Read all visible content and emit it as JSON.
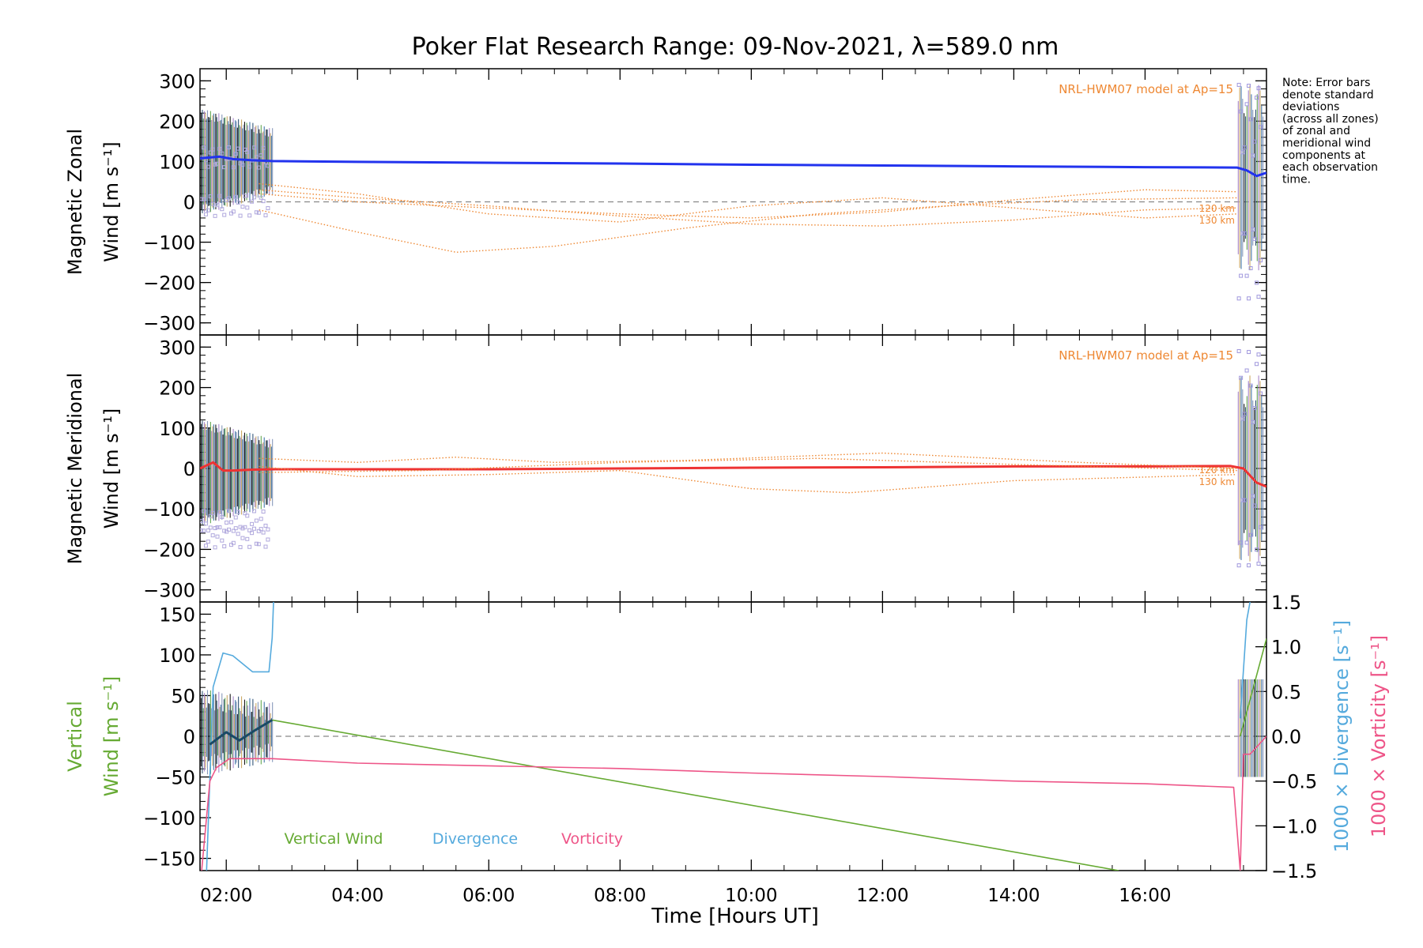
{
  "figure": {
    "title": "Poker Flat Research Range: 09-Nov-2021, λ=589.0 nm",
    "xlabel": "Time [Hours UT]",
    "xticks": [
      "02:00",
      "04:00",
      "06:00",
      "08:00",
      "10:00",
      "12:00",
      "14:00",
      "16:00"
    ],
    "note_lines": [
      "Note: Error bars",
      "denote standard",
      "deviations",
      "(across all zones)",
      "of zonal and",
      "meridional wind",
      "components at",
      "each observation",
      "time."
    ]
  },
  "chart_data": [
    {
      "type": "line",
      "panel": "zonal",
      "ylabel_line1": "Magnetic Zonal",
      "ylabel_line2": "Wind [m s⁻¹]",
      "ylim": [
        -330,
        330
      ],
      "yticks": [
        300,
        200,
        100,
        0,
        -100,
        -200,
        -300
      ],
      "xlim": [
        1.6,
        17.85
      ],
      "model_label": "NRL-HWM07 model at Ap=15",
      "altitude_labels": [
        "120 km",
        "130 km"
      ],
      "zero_line": true,
      "series": [
        {
          "color": "#2233ee",
          "x": [
            1.6,
            1.9,
            2.1,
            2.4,
            2.7,
            4,
            6,
            8,
            10,
            12,
            14,
            16,
            17.4,
            17.55,
            17.7,
            17.85
          ],
          "y": [
            108,
            112,
            106,
            103,
            101,
            99,
            97,
            95,
            92,
            90,
            88,
            86,
            85,
            78,
            64,
            72
          ]
        },
        {
          "color": "#ee8833",
          "x": [
            2.5,
            4,
            5.5,
            7,
            9,
            11,
            13,
            15,
            17.4
          ],
          "y": [
            -20,
            -75,
            -125,
            -110,
            -65,
            -30,
            -10,
            5,
            10
          ]
        },
        {
          "color": "#ee8833",
          "x": [
            2.5,
            4,
            6,
            8,
            10,
            12,
            14,
            16,
            17.4
          ],
          "y": [
            45,
            20,
            -30,
            -50,
            -10,
            10,
            -15,
            -40,
            -30
          ]
        },
        {
          "color": "#ee8833",
          "x": [
            2.5,
            4,
            6,
            8,
            10,
            12,
            14,
            16,
            17.4
          ],
          "y": [
            30,
            10,
            -10,
            -35,
            -55,
            -60,
            -45,
            -20,
            -15
          ]
        },
        {
          "color": "#ee8833",
          "x": [
            2.5,
            4,
            6,
            8,
            10,
            12,
            14,
            16,
            17.4
          ],
          "y": [
            20,
            0,
            -15,
            -30,
            -40,
            -25,
            5,
            30,
            25
          ]
        }
      ]
    },
    {
      "type": "line",
      "panel": "meridional",
      "ylabel_line1": "Magnetic Meridional",
      "ylabel_line2": "Wind [m s⁻¹]",
      "ylim": [
        -330,
        330
      ],
      "yticks": [
        300,
        200,
        100,
        0,
        -100,
        -200,
        -300
      ],
      "xlim": [
        1.6,
        17.85
      ],
      "model_label": "NRL-HWM07 model at Ap=15",
      "altitude_labels": [
        "120 km",
        "130 km"
      ],
      "zero_line": false,
      "series": [
        {
          "color": "#ee3333",
          "x": [
            1.6,
            1.8,
            1.95,
            2.1,
            2.4,
            2.7,
            4,
            6,
            8,
            10,
            12,
            14,
            16,
            17.3,
            17.5,
            17.7,
            17.85
          ],
          "y": [
            0,
            15,
            -5,
            -5,
            -3,
            -2,
            -2,
            -2,
            0,
            2,
            3,
            5,
            5,
            6,
            0,
            -35,
            -45
          ]
        },
        {
          "color": "#ee8833",
          "x": [
            2.5,
            4,
            5.5,
            7,
            9,
            12,
            15,
            17.4
          ],
          "y": [
            25,
            15,
            28,
            15,
            20,
            38,
            15,
            0
          ]
        },
        {
          "color": "#ee8833",
          "x": [
            2.5,
            4,
            6,
            8,
            10,
            11.5,
            14,
            17.4
          ],
          "y": [
            5,
            -20,
            -15,
            -5,
            -50,
            -60,
            -30,
            -15
          ]
        },
        {
          "color": "#ee8833",
          "x": [
            2.5,
            5,
            8,
            11,
            14,
            17.4
          ],
          "y": [
            -10,
            -5,
            15,
            25,
            10,
            -5
          ]
        }
      ]
    },
    {
      "type": "line",
      "panel": "vertical",
      "ylabel_line1": "Vertical",
      "ylabel_line2": "Wind [m s⁻¹]",
      "ylim": [
        -165,
        165
      ],
      "yticks": [
        150,
        100,
        50,
        0,
        -50,
        -100,
        -150
      ],
      "y2lim": [
        -1.5,
        1.5
      ],
      "y2ticks": [
        1.5,
        1.0,
        0.5,
        0.0,
        -0.5,
        -1.0,
        -1.5
      ],
      "y2label_divergence": "1000 × Divergence [s⁻¹]",
      "y2label_vorticity": "1000 × Vorticity [s⁻¹]",
      "xlim": [
        1.6,
        17.85
      ],
      "legend": [
        "Vertical Wind",
        "Divergence",
        "Vorticity"
      ],
      "zero_line": true,
      "series": [
        {
          "name": "Vertical Wind",
          "axis": "left",
          "color": "#66aa33",
          "x": [
            2.7,
            15.6
          ],
          "y": [
            20,
            -165
          ]
        },
        {
          "name": "Vertical Wind",
          "axis": "left",
          "color": "#66aa33",
          "x": [
            17.45,
            17.85
          ],
          "y": [
            0,
            120
          ]
        },
        {
          "name": "Divergence",
          "axis": "right",
          "color": "#55aadd",
          "x": [
            1.7,
            1.8,
            1.95,
            2.1,
            2.4,
            2.65,
            2.7,
            2.72
          ],
          "y": [
            -1.5,
            0.55,
            0.93,
            0.9,
            0.72,
            0.72,
            1.1,
            1.5
          ]
        },
        {
          "name": "Divergence",
          "axis": "right",
          "color": "#55aadd",
          "x": [
            17.45,
            17.55,
            17.6
          ],
          "y": [
            0.2,
            1.3,
            1.5
          ]
        },
        {
          "name": "Vorticity",
          "axis": "right",
          "color": "#ee5588",
          "x": [
            1.6,
            1.75,
            1.85,
            1.95,
            2.05,
            2.7,
            4,
            6,
            8,
            10,
            12,
            14,
            16,
            17.35,
            17.45,
            17.5,
            17.6,
            17.85
          ],
          "y": [
            -1.7,
            -0.5,
            -0.35,
            -0.3,
            -0.25,
            -0.25,
            -0.3,
            -0.33,
            -0.36,
            -0.41,
            -0.45,
            -0.5,
            -0.53,
            -0.57,
            -1.5,
            -0.2,
            -0.2,
            0.0
          ]
        },
        {
          "name": "Vertical Wind",
          "axis": "left",
          "color": "#1a4a66",
          "x": [
            1.75,
            2.0,
            2.2,
            2.45,
            2.7
          ],
          "y": [
            -10,
            5,
            -5,
            8,
            20
          ]
        }
      ]
    }
  ]
}
